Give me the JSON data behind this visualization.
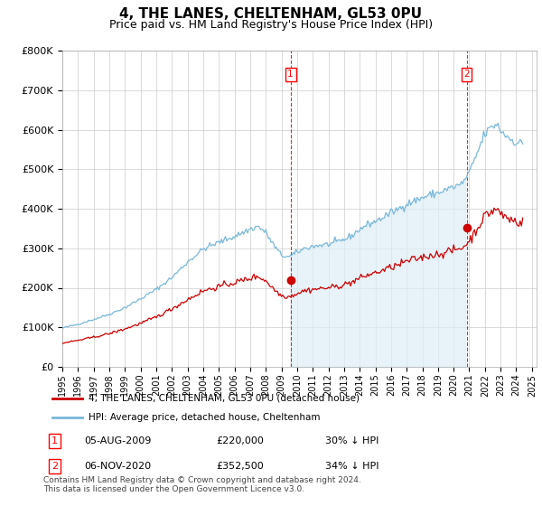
{
  "title": "4, THE LANES, CHELTENHAM, GL53 0PU",
  "subtitle": "Price paid vs. HM Land Registry's House Price Index (HPI)",
  "title_fontsize": 11,
  "subtitle_fontsize": 9,
  "ylim": [
    0,
    800000
  ],
  "yticks": [
    0,
    100000,
    200000,
    300000,
    400000,
    500000,
    600000,
    700000,
    800000
  ],
  "ytick_labels": [
    "£0",
    "£100K",
    "£200K",
    "£300K",
    "£400K",
    "£500K",
    "£600K",
    "£700K",
    "£800K"
  ],
  "xtick_labels": [
    "1995",
    "1996",
    "1997",
    "1998",
    "1999",
    "2000",
    "2001",
    "2002",
    "2003",
    "2004",
    "2005",
    "2006",
    "2007",
    "2008",
    "2009",
    "2010",
    "2011",
    "2012",
    "2013",
    "2014",
    "2015",
    "2016",
    "2017",
    "2018",
    "2019",
    "2020",
    "2021",
    "2022",
    "2023",
    "2024",
    "2025"
  ],
  "hpi_color": "#7ab8d9",
  "hpi_fill_color": "#ddeef7",
  "price_color": "#cc0000",
  "dashed_line_color": "#cc0000",
  "grid_color": "#cccccc",
  "background_color": "#ffffff",
  "legend_label_price": "4, THE LANES, CHELTENHAM, GL53 0PU (detached house)",
  "legend_label_hpi": "HPI: Average price, detached house, Cheltenham",
  "annotation1_num": "1",
  "annotation1_date": "05-AUG-2009",
  "annotation1_price": "£220,000",
  "annotation1_hpi": "30% ↓ HPI",
  "annotation2_num": "2",
  "annotation2_date": "06-NOV-2020",
  "annotation2_price": "£352,500",
  "annotation2_hpi": "34% ↓ HPI",
  "footer": "Contains HM Land Registry data © Crown copyright and database right 2024.\nThis data is licensed under the Open Government Licence v3.0.",
  "sale1_x": 2009.58,
  "sale1_y": 220000,
  "sale2_x": 2020.83,
  "sale2_y": 352500,
  "xlim_left": 1995.0,
  "xlim_right": 2025.3
}
